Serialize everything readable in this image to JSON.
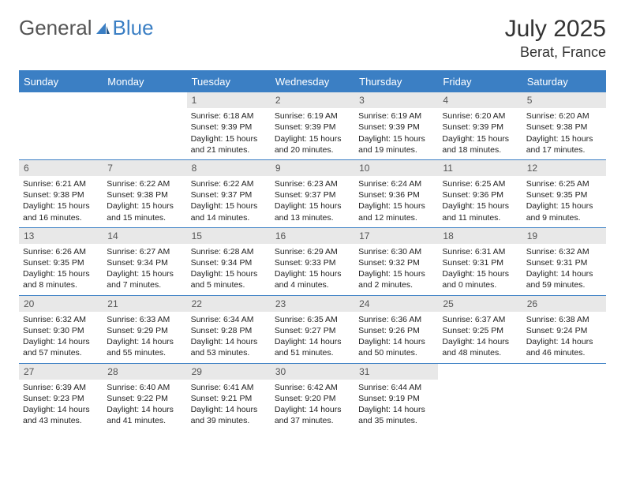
{
  "logo": {
    "part1": "General",
    "part2": "Blue"
  },
  "title": "July 2025",
  "location": "Berat, France",
  "colors": {
    "brand_blue": "#3b7fc4",
    "header_bg": "#3b7fc4",
    "daynum_bg": "#e8e8e8",
    "text": "#222222",
    "muted": "#555555",
    "white": "#ffffff"
  },
  "day_headers": [
    "Sunday",
    "Monday",
    "Tuesday",
    "Wednesday",
    "Thursday",
    "Friday",
    "Saturday"
  ],
  "first_day_col": 2,
  "days": [
    {
      "n": 1,
      "rise": "6:18 AM",
      "set": "9:39 PM",
      "h": 15,
      "m": 21
    },
    {
      "n": 2,
      "rise": "6:19 AM",
      "set": "9:39 PM",
      "h": 15,
      "m": 20
    },
    {
      "n": 3,
      "rise": "6:19 AM",
      "set": "9:39 PM",
      "h": 15,
      "m": 19
    },
    {
      "n": 4,
      "rise": "6:20 AM",
      "set": "9:39 PM",
      "h": 15,
      "m": 18
    },
    {
      "n": 5,
      "rise": "6:20 AM",
      "set": "9:38 PM",
      "h": 15,
      "m": 17
    },
    {
      "n": 6,
      "rise": "6:21 AM",
      "set": "9:38 PM",
      "h": 15,
      "m": 16
    },
    {
      "n": 7,
      "rise": "6:22 AM",
      "set": "9:38 PM",
      "h": 15,
      "m": 15
    },
    {
      "n": 8,
      "rise": "6:22 AM",
      "set": "9:37 PM",
      "h": 15,
      "m": 14
    },
    {
      "n": 9,
      "rise": "6:23 AM",
      "set": "9:37 PM",
      "h": 15,
      "m": 13
    },
    {
      "n": 10,
      "rise": "6:24 AM",
      "set": "9:36 PM",
      "h": 15,
      "m": 12
    },
    {
      "n": 11,
      "rise": "6:25 AM",
      "set": "9:36 PM",
      "h": 15,
      "m": 11
    },
    {
      "n": 12,
      "rise": "6:25 AM",
      "set": "9:35 PM",
      "h": 15,
      "m": 9
    },
    {
      "n": 13,
      "rise": "6:26 AM",
      "set": "9:35 PM",
      "h": 15,
      "m": 8
    },
    {
      "n": 14,
      "rise": "6:27 AM",
      "set": "9:34 PM",
      "h": 15,
      "m": 7
    },
    {
      "n": 15,
      "rise": "6:28 AM",
      "set": "9:34 PM",
      "h": 15,
      "m": 5
    },
    {
      "n": 16,
      "rise": "6:29 AM",
      "set": "9:33 PM",
      "h": 15,
      "m": 4
    },
    {
      "n": 17,
      "rise": "6:30 AM",
      "set": "9:32 PM",
      "h": 15,
      "m": 2
    },
    {
      "n": 18,
      "rise": "6:31 AM",
      "set": "9:31 PM",
      "h": 15,
      "m": 0
    },
    {
      "n": 19,
      "rise": "6:32 AM",
      "set": "9:31 PM",
      "h": 14,
      "m": 59
    },
    {
      "n": 20,
      "rise": "6:32 AM",
      "set": "9:30 PM",
      "h": 14,
      "m": 57
    },
    {
      "n": 21,
      "rise": "6:33 AM",
      "set": "9:29 PM",
      "h": 14,
      "m": 55
    },
    {
      "n": 22,
      "rise": "6:34 AM",
      "set": "9:28 PM",
      "h": 14,
      "m": 53
    },
    {
      "n": 23,
      "rise": "6:35 AM",
      "set": "9:27 PM",
      "h": 14,
      "m": 51
    },
    {
      "n": 24,
      "rise": "6:36 AM",
      "set": "9:26 PM",
      "h": 14,
      "m": 50
    },
    {
      "n": 25,
      "rise": "6:37 AM",
      "set": "9:25 PM",
      "h": 14,
      "m": 48
    },
    {
      "n": 26,
      "rise": "6:38 AM",
      "set": "9:24 PM",
      "h": 14,
      "m": 46
    },
    {
      "n": 27,
      "rise": "6:39 AM",
      "set": "9:23 PM",
      "h": 14,
      "m": 43
    },
    {
      "n": 28,
      "rise": "6:40 AM",
      "set": "9:22 PM",
      "h": 14,
      "m": 41
    },
    {
      "n": 29,
      "rise": "6:41 AM",
      "set": "9:21 PM",
      "h": 14,
      "m": 39
    },
    {
      "n": 30,
      "rise": "6:42 AM",
      "set": "9:20 PM",
      "h": 14,
      "m": 37
    },
    {
      "n": 31,
      "rise": "6:44 AM",
      "set": "9:19 PM",
      "h": 14,
      "m": 35
    }
  ],
  "labels": {
    "sunrise": "Sunrise:",
    "sunset": "Sunset:",
    "daylight": "Daylight:",
    "hours_word": "hours",
    "and_word": "and",
    "minutes_word": "minutes."
  }
}
